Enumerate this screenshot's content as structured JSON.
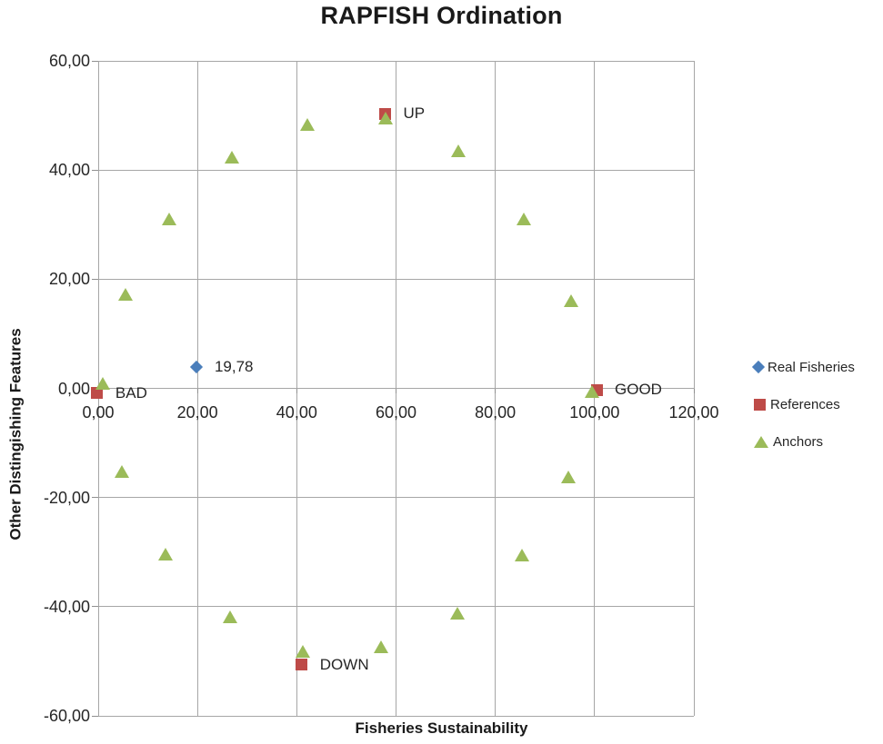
{
  "chart_data": {
    "type": "scatter",
    "title": "RAPFISH Ordination",
    "xlabel": "Fisheries Sustainability",
    "ylabel": "Other Distingishing  Features",
    "xlim": [
      0,
      120
    ],
    "ylim": [
      -60,
      60
    ],
    "grid": true,
    "legend_position": "right",
    "x_tick_labels": [
      "0,00",
      "20,00",
      "40,00",
      "60,00",
      "80,00",
      "100,00",
      "120,00"
    ],
    "y_tick_labels": [
      "60,00",
      "40,00",
      "20,00",
      "0,00",
      "-20,00",
      "-40,00",
      "-60,00"
    ],
    "series": [
      {
        "name": "Real Fisheries",
        "marker": "diamond",
        "color": "#4A7EBB",
        "points": [
          {
            "x": 19.78,
            "y": 3.9,
            "label": "19,78"
          }
        ]
      },
      {
        "name": "References",
        "marker": "square",
        "color": "#BE4B48",
        "points": [
          {
            "x": -0.2,
            "y": -0.9,
            "label": "BAD"
          },
          {
            "x": 57.8,
            "y": 50.3,
            "label": "UP"
          },
          {
            "x": 100.4,
            "y": -0.3,
            "label": "GOOD"
          },
          {
            "x": 41.0,
            "y": -50.6,
            "label": "DOWN"
          }
        ]
      },
      {
        "name": "Anchors",
        "marker": "triangle",
        "color": "#9BBB59",
        "points": [
          {
            "x": 1.0,
            "y": 0.8
          },
          {
            "x": 5.5,
            "y": 17.2
          },
          {
            "x": 14.3,
            "y": 31.0
          },
          {
            "x": 27.0,
            "y": 42.3
          },
          {
            "x": 42.2,
            "y": 48.3
          },
          {
            "x": 57.9,
            "y": 49.5
          },
          {
            "x": 72.5,
            "y": 43.4
          },
          {
            "x": 85.7,
            "y": 30.9
          },
          {
            "x": 95.3,
            "y": 15.9
          },
          {
            "x": 99.5,
            "y": -0.6
          },
          {
            "x": 94.7,
            "y": -16.3
          },
          {
            "x": 85.3,
            "y": -30.6
          },
          {
            "x": 72.4,
            "y": -41.3
          },
          {
            "x": 56.9,
            "y": -47.5
          },
          {
            "x": 41.2,
            "y": -48.2
          },
          {
            "x": 26.6,
            "y": -42.0
          },
          {
            "x": 13.5,
            "y": -30.5
          },
          {
            "x": 4.8,
            "y": -15.3
          }
        ]
      }
    ],
    "grid_color": "#a6a6a6",
    "text_color": "#262626"
  }
}
